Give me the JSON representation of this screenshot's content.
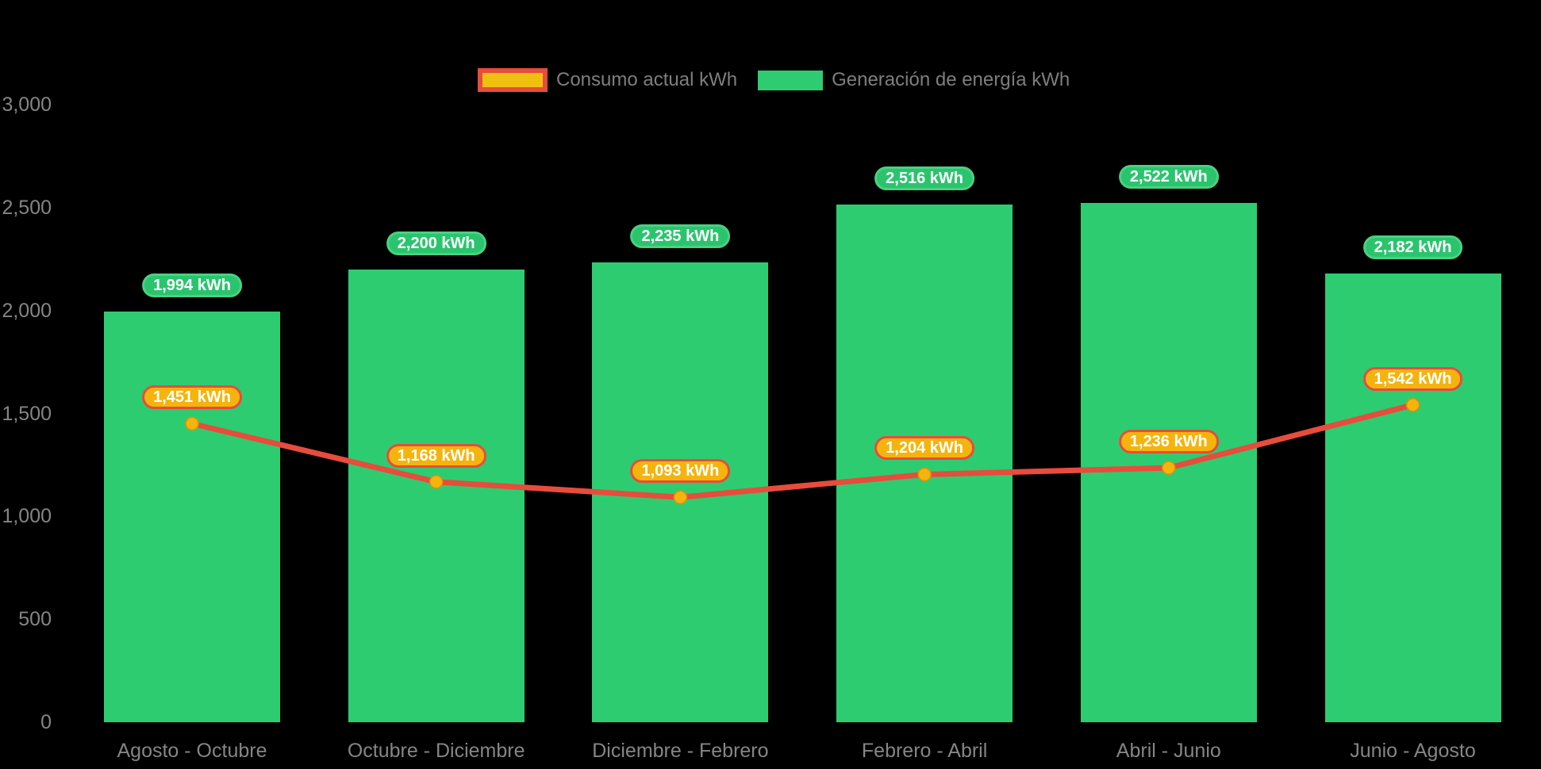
{
  "chart_data": {
    "type": "combo-bar-line",
    "background": "#000000",
    "grid": false,
    "legend_position": "top",
    "categories": [
      "Agosto - Octubre",
      "Octubre - Diciembre",
      "Diciembre - Febrero",
      "Febrero - Abril",
      "Abril - Junio",
      "Junio - Agosto"
    ],
    "series": [
      {
        "name": "Consumo actual kWh",
        "type": "line",
        "values": [
          1451,
          1168,
          1093,
          1204,
          1236,
          1542
        ],
        "labels": [
          "1,451 kWh",
          "1,168 kWh",
          "1,093 kWh",
          "1,204 kWh",
          "1,236 kWh",
          "1,542 kWh"
        ],
        "line_color": "#e74c3c",
        "marker_color": "#f4b40d",
        "badge_fill": "#f4b40d",
        "badge_border": "#e74c3c"
      },
      {
        "name": "Generación de energía kWh",
        "type": "bar",
        "values": [
          1994,
          2200,
          2235,
          2516,
          2522,
          2182
        ],
        "labels": [
          "1,994 kWh",
          "2,200 kWh",
          "2,235 kWh",
          "2,516 kWh",
          "2,522 kWh",
          "2,182 kWh"
        ],
        "color": "#2ecc71",
        "badge_fill": "#2bc46e",
        "badge_border": "#4ad182"
      }
    ],
    "y_axis": {
      "tick_values": [
        0,
        500,
        1000,
        1500,
        2000,
        2500,
        3000
      ],
      "tick_labels": [
        "0",
        "500",
        "1,000",
        "1,500",
        "2,000",
        "2,500",
        "3,000"
      ],
      "range": [
        0,
        3000
      ]
    },
    "axis_text_color": "#858585"
  }
}
